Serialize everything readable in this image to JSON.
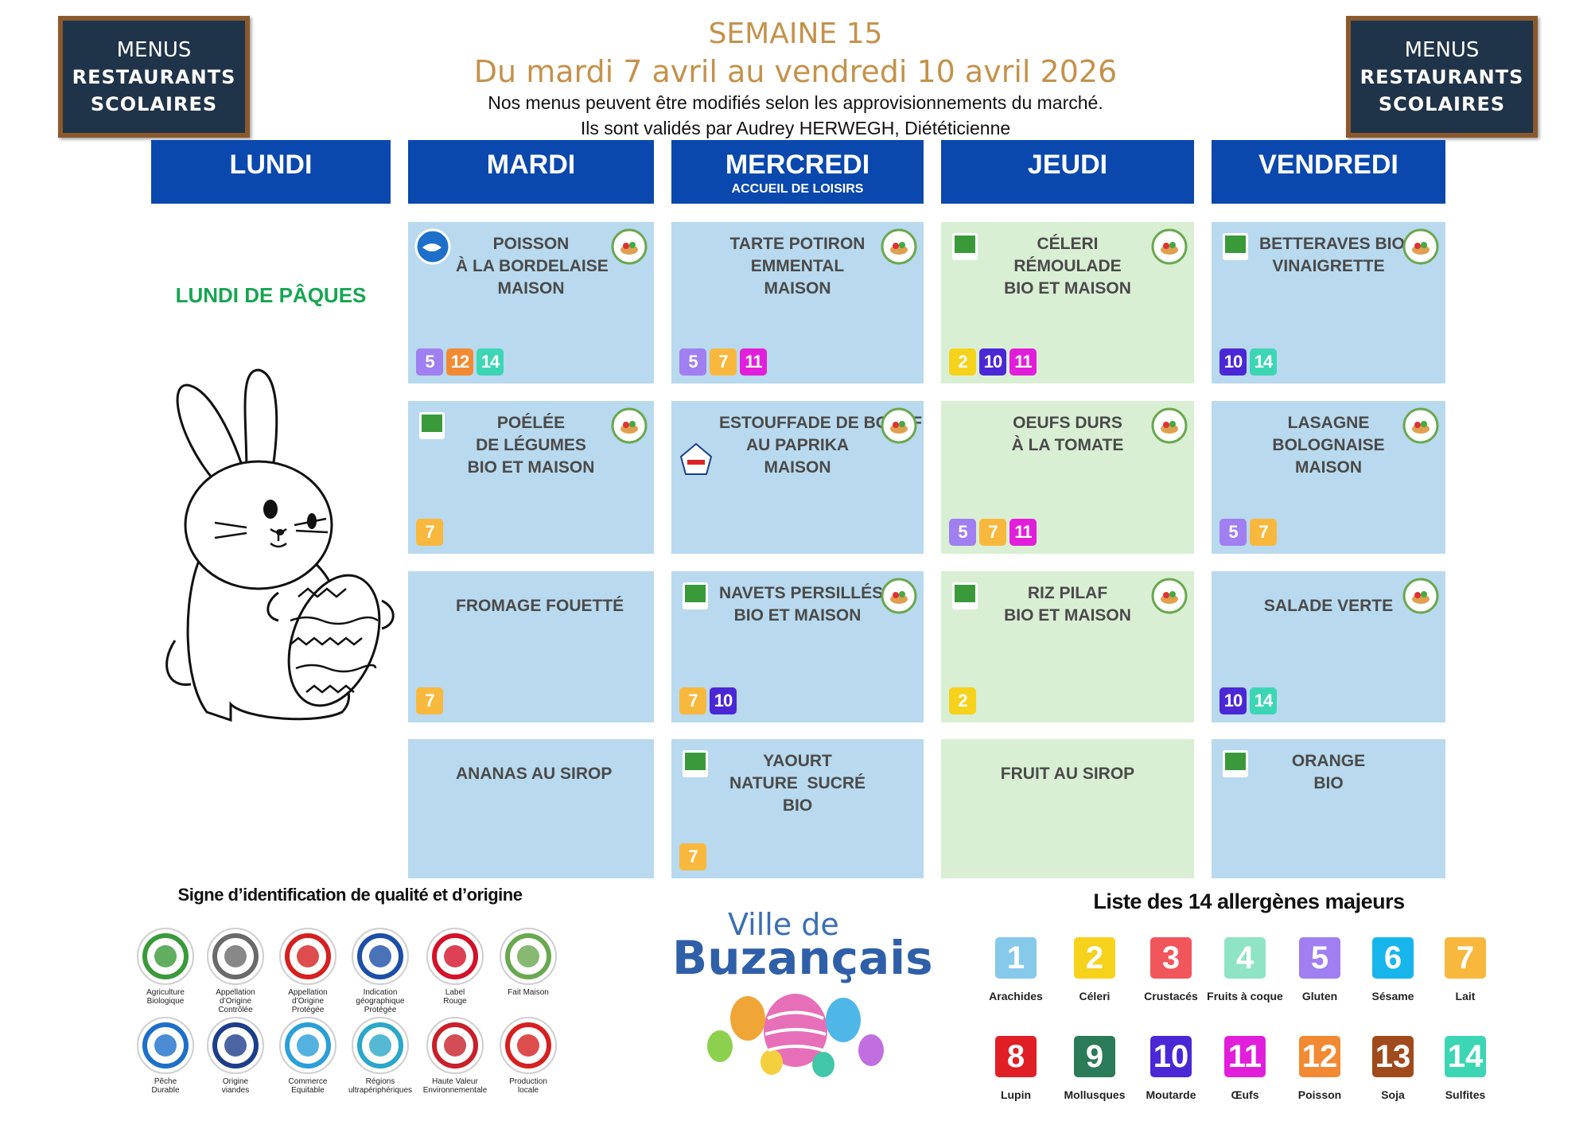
{
  "header": {
    "title": "SEMAINE 15",
    "subtitle": "Du mardi 7 avril au vendredi 10 avril 2026",
    "notes": [
      "Nos menus peuvent être modifiés selon les approvisionnements du marché.",
      "Ils sont validés par Audrey HERWEGH, Diététicienne"
    ]
  },
  "badge": [
    "MENUS",
    "RESTAURANTS",
    "SCOLAIRES"
  ],
  "days": [
    {
      "name": "LUNDI"
    },
    {
      "name": "MARDI"
    },
    {
      "name": "MERCREDI",
      "sub": "ACCUEIL DE LOISIRS"
    },
    {
      "name": "JEUDI"
    },
    {
      "name": "VENDREDI"
    }
  ],
  "monday_note": "LUNDI DE PÂQUES",
  "menu": [
    [
      {
        "lines": [
          "POISSON",
          "À LA BORDELAISE",
          "MAISON"
        ],
        "allergens": [
          "5",
          "12",
          "14"
        ]
      },
      {
        "lines": [
          "POÉLÉE",
          "DE LÉGUMES",
          "BIO ET MAISON"
        ],
        "allergens": [
          "7"
        ]
      },
      {
        "lines": [
          "FROMAGE FOUETTÉ"
        ],
        "allergens": [
          "7"
        ]
      },
      {
        "lines": [
          "ANANAS AU SIROP"
        ],
        "allergens": []
      }
    ],
    [
      {
        "lines": [
          "TARTE POTIRON",
          "EMMENTAL",
          "MAISON"
        ],
        "allergens": [
          "5",
          "7",
          "11"
        ]
      },
      {
        "lines": [
          "ESTOUFFADE DE BOEUF",
          "AU PAPRIKA",
          "MAISON"
        ],
        "allergens": []
      },
      {
        "lines": [
          "NAVETS PERSILLÉS",
          "BIO ET MAISON"
        ],
        "allergens": [
          "7",
          "10"
        ]
      },
      {
        "lines": [
          "YAOURT",
          "NATURE  SUCRÉ",
          "BIO"
        ],
        "allergens": [
          "7"
        ]
      }
    ],
    [
      {
        "lines": [
          "CÉLERI",
          "RÉMOULADE",
          "BIO ET MAISON"
        ],
        "allergens": [
          "2",
          "10",
          "11"
        ]
      },
      {
        "lines": [
          "OEUFS DURS",
          "À LA TOMATE"
        ],
        "allergens": [
          "5",
          "7",
          "11"
        ]
      },
      {
        "lines": [
          "RIZ PILAF",
          "BIO ET MAISON"
        ],
        "allergens": [
          "2"
        ]
      },
      {
        "lines": [
          "FRUIT AU SIROP"
        ],
        "allergens": []
      }
    ],
    [
      {
        "lines": [
          "BETTERAVES BIO",
          "VINAIGRETTE"
        ],
        "allergens": [
          "10",
          "14"
        ]
      },
      {
        "lines": [
          "LASAGNE",
          "BOLOGNAISE",
          "MAISON"
        ],
        "allergens": [
          "5",
          "7"
        ]
      },
      {
        "lines": [
          "SALADE VERTE"
        ],
        "allergens": [
          "10",
          "14"
        ]
      },
      {
        "lines": [
          "ORANGE",
          "BIO"
        ],
        "allergens": []
      }
    ]
  ],
  "signs": {
    "title": "Signe d’identification de qualité et d’origine",
    "items": [
      {
        "lines": [
          "Agriculture",
          "Biologique"
        ],
        "color": "#3a9a3a"
      },
      {
        "lines": [
          "Appellation",
          "d’Origine",
          "Contrôlée"
        ],
        "color": "#6a6a6a"
      },
      {
        "lines": [
          "Appellation",
          "d’Origine",
          "Protégée"
        ],
        "color": "#d62020"
      },
      {
        "lines": [
          "Indication",
          "géographique",
          "Protégée"
        ],
        "color": "#1d4fa8"
      },
      {
        "lines": [
          "Label",
          "Rouge"
        ],
        "color": "#d3122a"
      },
      {
        "lines": [
          "Fait Maison"
        ],
        "color": "#6aa84f"
      },
      {
        "lines": [
          "Pêche",
          "Durable"
        ],
        "color": "#1e6fc9"
      },
      {
        "lines": [
          "Origine",
          "viandes"
        ],
        "color": "#1d3e8a"
      },
      {
        "lines": [
          "Commerce",
          "Equitable"
        ],
        "color": "#2b9fd8"
      },
      {
        "lines": [
          "Régions",
          "ultrapériphériques"
        ],
        "color": "#2aa7c9"
      },
      {
        "lines": [
          "Haute Valeur",
          "Environnementale"
        ],
        "color": "#c8202a"
      },
      {
        "lines": [
          "Production",
          "locale"
        ],
        "color": "#d62020"
      }
    ]
  },
  "logo": {
    "line1": "Ville de",
    "line2": "Buzançais"
  },
  "allergens": {
    "title": "Liste des 14 allergènes majeurs",
    "items": [
      {
        "number": "1",
        "name": "Arachides",
        "color": "#86c9ea"
      },
      {
        "number": "2",
        "name": "Céleri",
        "color": "#f6d21c"
      },
      {
        "number": "3",
        "name": "Crustacés",
        "color": "#f0565b"
      },
      {
        "number": "4",
        "name": "Fruits à coque",
        "color": "#8fe4c6"
      },
      {
        "number": "5",
        "name": "Gluten",
        "color": "#a07ff0"
      },
      {
        "number": "6",
        "name": "Sésame",
        "color": "#17b5ec"
      },
      {
        "number": "7",
        "name": "Lait",
        "color": "#f8b83d"
      },
      {
        "number": "8",
        "name": "Lupin",
        "color": "#e01e26"
      },
      {
        "number": "9",
        "name": "Mollusques",
        "color": "#2b7a58"
      },
      {
        "number": "10",
        "name": "Moutarde",
        "color": "#4a28d6"
      },
      {
        "number": "11",
        "name": "Œufs",
        "color": "#e11fdb"
      },
      {
        "number": "12",
        "name": "Poisson",
        "color": "#f28a33"
      },
      {
        "number": "13",
        "name": "Soja",
        "color": "#a14a1b"
      },
      {
        "number": "14",
        "name": "Sulfites",
        "color": "#3dd6b5"
      }
    ]
  }
}
